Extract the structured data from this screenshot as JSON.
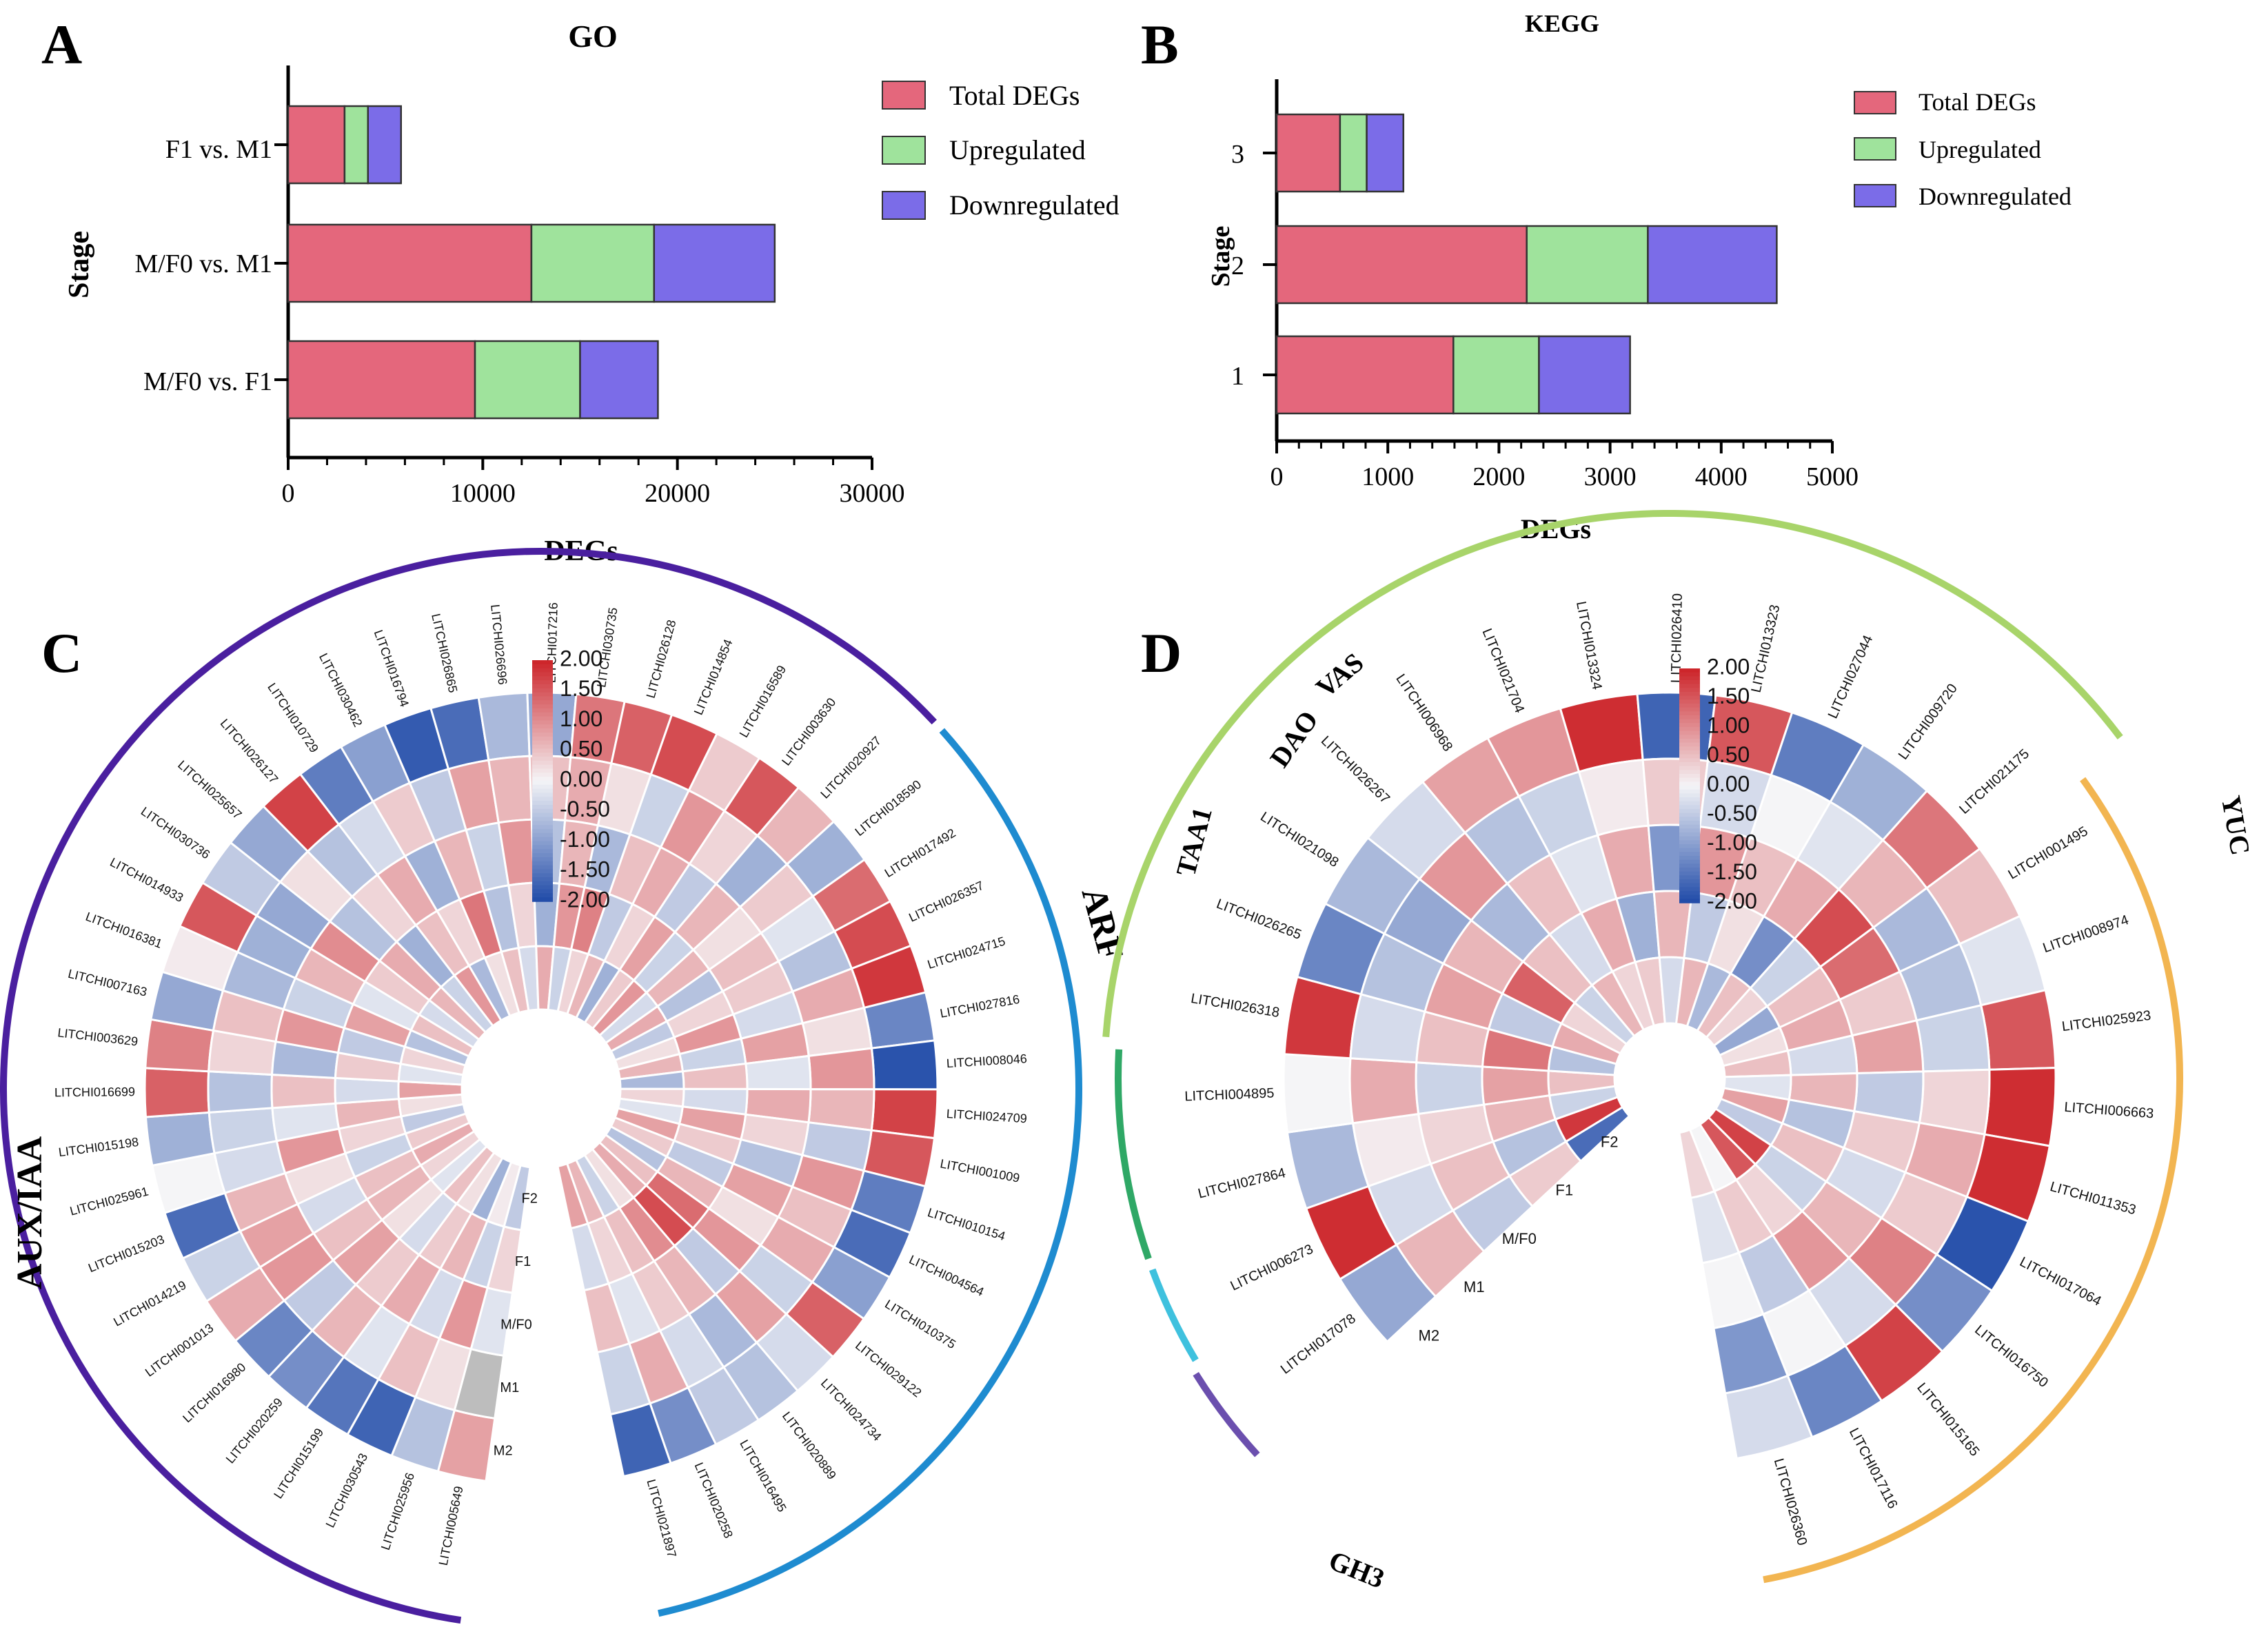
{
  "panel_labels": {
    "A": "A",
    "B": "B",
    "C": "C",
    "D": "D"
  },
  "colors": {
    "total": "#e4677c",
    "up": "#9fe39c",
    "down": "#7b6ce8",
    "heat_low": "#1f4aa8",
    "heat_mid": "#f5f5f7",
    "heat_high": "#cc2228",
    "gray_cell": "#bdbdbd",
    "arc_auxiaa": "#4a1f9f",
    "arc_arf": "#1e8bd0",
    "arc_yuc": "#f2b551",
    "arc_gh3": "#a8d46a",
    "arc_taa1": "#2fa866",
    "arc_dao": "#3fc1de",
    "arc_vas": "#6b4fae"
  },
  "chart_data": [
    {
      "type": "bar",
      "orientation": "horizontal-stacked",
      "title": "GO",
      "xlabel": "DEGs",
      "ylabel": "Stage",
      "xlim": [
        0,
        30000
      ],
      "xticks": [
        "0",
        "10000",
        "20000",
        "30000"
      ],
      "categories": [
        "F1 vs. M1",
        "M/F0 vs. M1",
        "M/F0 vs. F1"
      ],
      "series": [
        {
          "name": "Total DEGs",
          "values": [
            2900,
            12500,
            9600
          ]
        },
        {
          "name": "Upregulated",
          "values": [
            1200,
            6300,
            5400
          ]
        },
        {
          "name": "Downregulated",
          "values": [
            1700,
            6200,
            4000
          ]
        }
      ],
      "legend": [
        "Total DEGs",
        "Upregulated",
        "Downregulated"
      ]
    },
    {
      "type": "bar",
      "orientation": "horizontal-stacked",
      "title": "KEGG",
      "xlabel": "DEGs",
      "ylabel": "Stage",
      "xlim": [
        0,
        5000
      ],
      "xticks": [
        "0",
        "1000",
        "2000",
        "3000",
        "4000",
        "5000"
      ],
      "categories": [
        "3",
        "2",
        "1"
      ],
      "series": [
        {
          "name": "Total DEGs",
          "values": [
            570,
            2250,
            1590
          ]
        },
        {
          "name": "Upregulated",
          "values": [
            240,
            1090,
            770
          ]
        },
        {
          "name": "Downregulated",
          "values": [
            330,
            1160,
            820
          ]
        }
      ],
      "legend": [
        "Total DEGs",
        "Upregulated",
        "Downregulated"
      ]
    },
    {
      "type": "heatmap",
      "layout": "circular",
      "rings": [
        "M2",
        "M1",
        "M/F0",
        "F1",
        "F2"
      ],
      "scale": {
        "min": -2.0,
        "max": 2.0,
        "ticks": [
          "2.00",
          "1.50",
          "1.00",
          "0.50",
          "0.00",
          "-0.50",
          "-1.00",
          "-1.50",
          "-2.00"
        ]
      },
      "groups": [
        {
          "name": "AUX/IAA",
          "genes": [
            "LITCHI005649",
            "LITCHI025956",
            "LITCHI030543",
            "LITCHI015199",
            "LITCHI020259",
            "LITCHI016980",
            "LITCHI001013",
            "LITCHI014219",
            "LITCHI015203",
            "LITCHI025961",
            "LITCHI015198",
            "LITCHI016699",
            "LITCHI003629",
            "LITCHI007163",
            "LITCHI016381",
            "LITCHI014933",
            "LITCHI030736",
            "LITCHI025657",
            "LITCHI026127",
            "LITCHI010729",
            "LITCHI030462",
            "LITCHI016794",
            "LITCHI026865",
            "LITCHI026696",
            "LITCHI017216",
            "LITCHI030735",
            "LITCHI026128",
            "LITCHI014854",
            "LITCHI016589",
            "LITCHI003630",
            "LITCHI020927"
          ]
        },
        {
          "name": "ARF",
          "genes": [
            "LITCHI018590",
            "LITCHI017492",
            "LITCHI026357",
            "LITCHI024715",
            "LITCHI027816",
            "LITCHI008046",
            "LITCHI024709",
            "LITCHI001009",
            "LITCHI010154",
            "LITCHI004564",
            "LITCHI010375",
            "LITCHI029122",
            "LITCHI024734",
            "LITCHI020889",
            "LITCHI016495",
            "LITCHI020258",
            "LITCHI021897"
          ]
        }
      ],
      "gene_order": [
        "LITCHI005649",
        "LITCHI025956",
        "LITCHI030543",
        "LITCHI015199",
        "LITCHI020259",
        "LITCHI016980",
        "LITCHI001013",
        "LITCHI014219",
        "LITCHI015203",
        "LITCHI025961",
        "LITCHI015198",
        "LITCHI016699",
        "LITCHI003629",
        "LITCHI007163",
        "LITCHI016381",
        "LITCHI014933",
        "LITCHI030736",
        "LITCHI025657",
        "LITCHI026127",
        "LITCHI010729",
        "LITCHI030462",
        "LITCHI016794",
        "LITCHI026865",
        "LITCHI026696",
        "LITCHI017216",
        "LITCHI030735",
        "LITCHI026128",
        "LITCHI014854",
        "LITCHI016589",
        "LITCHI003630",
        "LITCHI020927",
        "LITCHI018590",
        "LITCHI017492",
        "LITCHI026357",
        "LITCHI024715",
        "LITCHI027816",
        "LITCHI008046",
        "LITCHI024709",
        "LITCHI001009",
        "LITCHI010154",
        "LITCHI004564",
        "LITCHI010375",
        "LITCHI029122",
        "LITCHI024734",
        "LITCHI020889",
        "LITCHI016495",
        "LITCHI020258",
        "LITCHI021897"
      ],
      "values": [
        [
          0.8,
          null,
          -0.2,
          0.3,
          -0.5
        ],
        [
          -0.6,
          0.2,
          0.9,
          -0.4,
          0.1
        ],
        [
          -1.7,
          0.5,
          -0.3,
          0.6,
          -0.8
        ],
        [
          -1.5,
          -0.2,
          0.7,
          0.4,
          0.2
        ],
        [
          -1.2,
          0.6,
          0.4,
          -0.3,
          0.5
        ],
        [
          -1.3,
          -0.5,
          0.8,
          0.2,
          -0.2
        ],
        [
          0.7,
          0.9,
          0.5,
          0.6,
          0.3
        ],
        [
          -0.4,
          0.8,
          -0.3,
          0.5,
          0.7
        ],
        [
          -1.6,
          0.6,
          0.2,
          -0.4,
          0.4
        ],
        [
          0.0,
          -0.3,
          0.9,
          0.3,
          -0.5
        ],
        [
          -0.8,
          -0.4,
          -0.2,
          0.6,
          0.2
        ],
        [
          1.4,
          -0.6,
          0.5,
          -0.3,
          0.8
        ],
        [
          1.1,
          0.3,
          -0.7,
          0.4,
          -0.2
        ],
        [
          -0.9,
          0.5,
          0.9,
          -0.5,
          0.3
        ],
        [
          0.1,
          -0.7,
          -0.4,
          0.8,
          -0.6
        ],
        [
          1.5,
          -0.8,
          0.6,
          -0.2,
          0.5
        ],
        [
          -0.5,
          -0.9,
          1.0,
          0.4,
          -0.3
        ],
        [
          -0.9,
          0.2,
          -0.6,
          0.7,
          0.6
        ],
        [
          1.7,
          -0.6,
          0.3,
          -0.8,
          -0.4
        ],
        [
          -1.4,
          -0.3,
          0.7,
          0.5,
          0.9
        ],
        [
          -1.0,
          0.4,
          -0.8,
          0.3,
          -0.7
        ],
        [
          -1.8,
          -0.5,
          0.6,
          1.2,
          0.2
        ],
        [
          -1.6,
          0.8,
          -0.4,
          -0.6,
          0.5
        ],
        [
          -0.7,
          0.6,
          0.9,
          0.3,
          -0.3
        ],
        [
          -0.9,
          0.5,
          -0.6,
          -0.8,
          0.7
        ],
        [
          1.2,
          0.7,
          0.6,
          0.9,
          -0.4
        ],
        [
          1.4,
          0.2,
          -0.7,
          1.1,
          0.3
        ],
        [
          1.6,
          -0.4,
          0.5,
          -0.5,
          0.6
        ],
        [
          0.4,
          0.9,
          0.7,
          0.3,
          -0.8
        ],
        [
          1.5,
          0.3,
          -0.5,
          0.8,
          0.4
        ],
        [
          0.6,
          -0.8,
          0.6,
          -0.4,
          0.9
        ],
        [
          -0.8,
          0.4,
          0.2,
          0.6,
          -0.3
        ],
        [
          1.3,
          -0.2,
          0.5,
          -0.6,
          0.7
        ],
        [
          1.6,
          -0.6,
          0.4,
          0.3,
          -0.5
        ],
        [
          1.8,
          0.7,
          -0.3,
          0.9,
          0.2
        ],
        [
          -1.3,
          0.2,
          0.8,
          -0.4,
          0.6
        ],
        [
          -1.9,
          0.9,
          -0.2,
          0.5,
          -0.7
        ],
        [
          1.7,
          0.6,
          0.7,
          -0.3,
          0.3
        ],
        [
          1.5,
          -0.5,
          0.3,
          0.8,
          -0.2
        ],
        [
          -1.4,
          0.9,
          -0.6,
          0.4,
          0.8
        ],
        [
          -1.6,
          0.5,
          0.8,
          -0.5,
          0.4
        ],
        [
          -1.0,
          0.7,
          0.2,
          0.6,
          -0.6
        ],
        [
          1.4,
          -0.4,
          0.9,
          1.3,
          0.5
        ],
        [
          -0.3,
          0.8,
          -0.5,
          1.6,
          0.7
        ],
        [
          -0.6,
          -0.7,
          0.6,
          1.0,
          0.2
        ],
        [
          -0.5,
          -0.3,
          0.4,
          0.5,
          -0.4
        ],
        [
          -1.2,
          0.7,
          -0.2,
          0.3,
          0.6
        ],
        [
          -1.7,
          -0.4,
          0.5,
          -0.3,
          0.8
        ]
      ]
    },
    {
      "type": "heatmap",
      "layout": "circular",
      "rings": [
        "M2",
        "M1",
        "M/F0",
        "F1",
        "F2"
      ],
      "scale": {
        "min": -2.0,
        "max": 2.0,
        "ticks": [
          "2.00",
          "1.50",
          "1.00",
          "0.50",
          "0.00",
          "-0.50",
          "-1.00",
          "-1.50",
          "-2.00"
        ]
      },
      "groups": [
        {
          "name": "VAS",
          "genes": [
            "LITCHI017078"
          ]
        },
        {
          "name": "DAO",
          "genes": [
            "LITCHI006273"
          ]
        },
        {
          "name": "TAA1",
          "genes": [
            "LITCHI027864",
            "LITCHI004895"
          ]
        },
        {
          "name": "GH3",
          "genes": [
            "LITCHI026318",
            "LITCHI026265",
            "LITCHI021098",
            "LITCHI026267",
            "LITCHI006968",
            "LITCHI021704",
            "LITCHI013324",
            "LITCHI026410",
            "LITCHI013323",
            "LITCHI027044",
            "LITCHI009720",
            "LITCHI021175"
          ]
        },
        {
          "name": "YUC",
          "genes": [
            "LITCHI001495",
            "LITCHI008974",
            "LITCHI025923",
            "LITCHI006663",
            "LITCHI011353",
            "LITCHI017064",
            "LITCHI016750",
            "LITCHI015165",
            "LITCHI017116",
            "LITCHI026360"
          ]
        }
      ],
      "gene_order": [
        "LITCHI017078",
        "LITCHI006273",
        "LITCHI027864",
        "LITCHI004895",
        "LITCHI026318",
        "LITCHI026265",
        "LITCHI021098",
        "LITCHI026267",
        "LITCHI006968",
        "LITCHI021704",
        "LITCHI013324",
        "LITCHI026410",
        "LITCHI013323",
        "LITCHI027044",
        "LITCHI009720",
        "LITCHI021175",
        "LITCHI001495",
        "LITCHI008974",
        "LITCHI025923",
        "LITCHI006663",
        "LITCHI011353",
        "LITCHI017064",
        "LITCHI016750",
        "LITCHI015165",
        "LITCHI017116",
        "LITCHI026360"
      ],
      "values": [
        [
          -0.9,
          0.6,
          -0.5,
          0.4,
          -1.6
        ],
        [
          1.9,
          -0.3,
          0.5,
          -0.6,
          1.8
        ],
        [
          -0.7,
          0.1,
          0.3,
          0.6,
          -0.4
        ],
        [
          0.0,
          0.7,
          -0.4,
          0.8,
          0.5
        ],
        [
          1.8,
          -0.3,
          0.5,
          1.2,
          -0.6
        ],
        [
          -1.3,
          -0.6,
          0.8,
          -0.5,
          0.7
        ],
        [
          -0.7,
          -0.9,
          0.6,
          1.4,
          0.3
        ],
        [
          -0.3,
          0.9,
          -0.7,
          0.5,
          -0.4
        ],
        [
          0.8,
          -0.6,
          0.5,
          -0.3,
          0.6
        ],
        [
          0.9,
          -0.4,
          -0.2,
          0.7,
          0.3
        ],
        [
          1.9,
          0.1,
          0.7,
          -0.8,
          0.4
        ],
        [
          -1.7,
          0.4,
          -1.1,
          0.6,
          -0.3
        ],
        [
          1.5,
          -0.3,
          0.9,
          -0.5,
          0.6
        ],
        [
          -1.4,
          0.0,
          0.5,
          0.2,
          -0.7
        ],
        [
          -0.8,
          -0.2,
          0.7,
          -1.2,
          0.5
        ],
        [
          1.2,
          0.6,
          1.6,
          -0.4,
          0.3
        ],
        [
          0.5,
          -0.7,
          1.3,
          0.5,
          -0.9
        ],
        [
          -0.2,
          -0.6,
          0.4,
          0.7,
          0.2
        ],
        [
          1.5,
          -0.4,
          0.8,
          -0.3,
          0.5
        ],
        [
          1.9,
          0.3,
          -0.5,
          0.6,
          -0.2
        ],
        [
          1.9,
          0.7,
          0.4,
          -0.6,
          0.8
        ],
        [
          -1.9,
          0.4,
          -0.3,
          0.5,
          -0.5
        ],
        [
          -1.2,
          1.1,
          0.6,
          -0.4,
          1.7
        ],
        [
          1.7,
          -0.3,
          0.9,
          0.3,
          1.5
        ],
        [
          -1.3,
          0.0,
          -0.5,
          0.4,
          0.0
        ],
        [
          -0.3,
          -1.1,
          0.0,
          -0.2,
          0.3
        ]
      ]
    }
  ]
}
